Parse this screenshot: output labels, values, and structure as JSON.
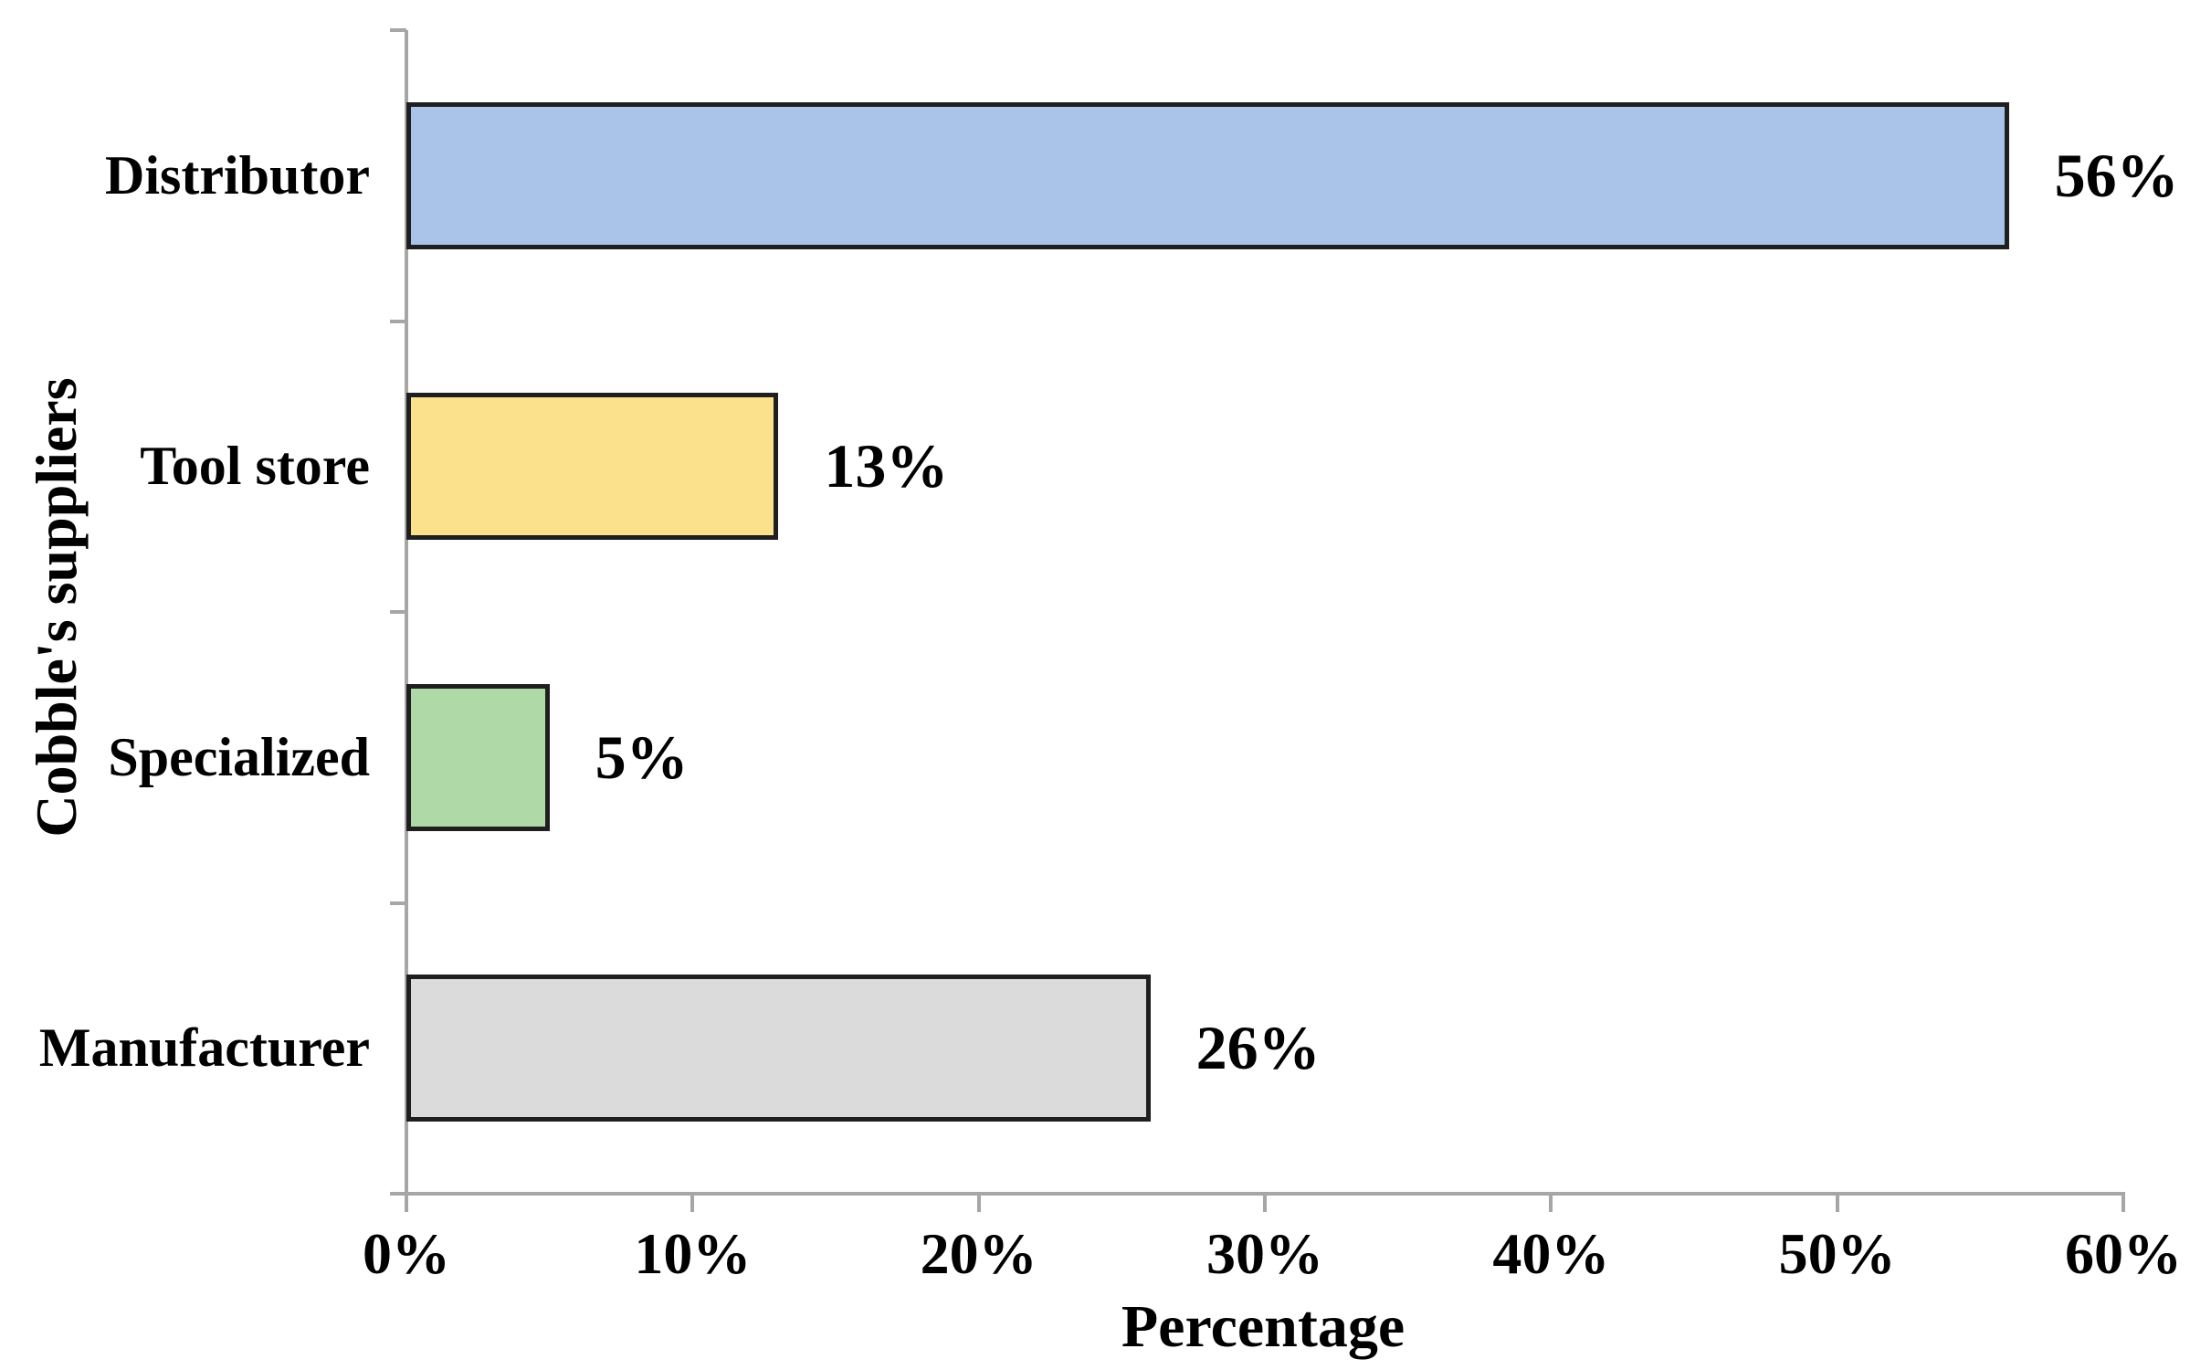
{
  "chart_data": {
    "type": "bar",
    "orientation": "horizontal",
    "title": "",
    "xlabel": "Percentage",
    "ylabel": "Cobble's suppliers",
    "categories": [
      "Distributor",
      "Tool store",
      "Specialized",
      "Manufacturer"
    ],
    "values": [
      56,
      13,
      5,
      26
    ],
    "data_labels": [
      "56%",
      "13%",
      "5%",
      "26%"
    ],
    "xlim": [
      0,
      60
    ],
    "x_ticks": [
      "0%",
      "10%",
      "20%",
      "30%",
      "40%",
      "50%",
      "60%"
    ],
    "x_tick_values": [
      0,
      10,
      20,
      30,
      40,
      50,
      60
    ],
    "bar_colors": [
      "#A9C4E8",
      "#FBE18C",
      "#AFD9A7",
      "#DBDBDB"
    ],
    "bar_border_color": "#1F1F1F",
    "axis_color": "#A6A6A6",
    "grid": false,
    "legend": false
  }
}
